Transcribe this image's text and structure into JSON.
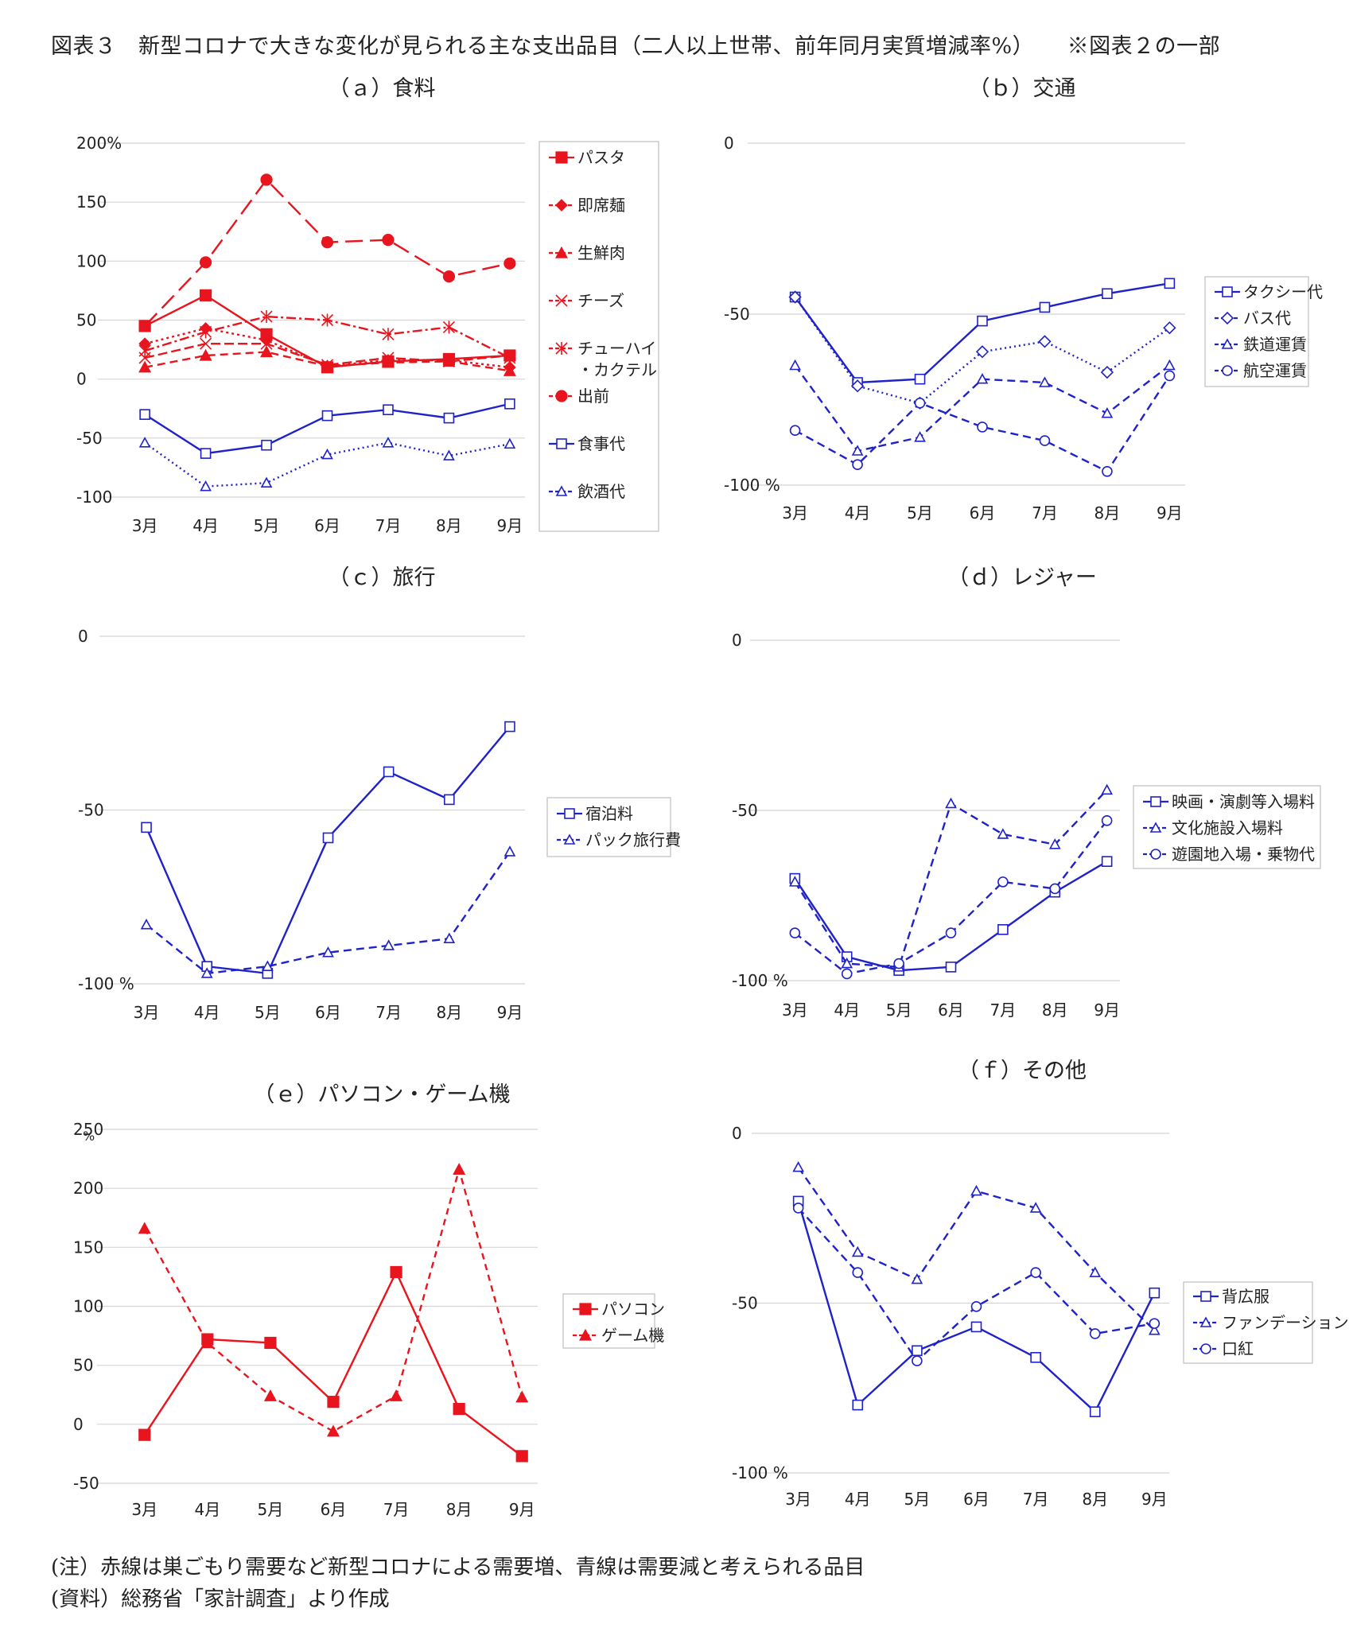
{
  "figure": {
    "title": "図表３　新型コロナで大きな変化が見られる主な支出品目（二人以上世帯、前年同月実質増減率%）　　※図表２の一部",
    "note": "(注）赤線は巣ごもり需要など新型コロナによる需要増、青線は需要減と考えられる品目",
    "source": "(資料）総務省「家計調査」より作成"
  },
  "colors": {
    "red": "#e8141e",
    "blue": "#1f22c8"
  },
  "chart_data": [
    {
      "id": "a",
      "type": "line",
      "title": "（ａ）食料",
      "categories": [
        "3月",
        "4月",
        "5月",
        "6月",
        "7月",
        "8月",
        "9月"
      ],
      "ylim": [
        -100,
        200
      ],
      "yticks": [
        -100,
        -50,
        0,
        50,
        100,
        150,
        200
      ],
      "ytick_labels": [
        "-100",
        "-50",
        "0",
        "50",
        "100",
        "150",
        "200%"
      ],
      "unit_label": "",
      "legend_position": "right",
      "series": [
        {
          "name": "パスタ",
          "color": "#e8141e",
          "dash": "",
          "marker": "square-filled",
          "values": [
            45,
            71,
            38,
            10,
            15,
            17,
            20
          ]
        },
        {
          "name": "即席麺",
          "color": "#e8141e",
          "dash": "3,4",
          "marker": "diamond-filled",
          "values": [
            30,
            43,
            33,
            11,
            16,
            16,
            10
          ]
        },
        {
          "name": "生鮮肉",
          "color": "#e8141e",
          "dash": "10,6",
          "marker": "triangle-filled",
          "values": [
            10,
            20,
            23,
            11,
            14,
            15,
            7
          ]
        },
        {
          "name": "チーズ",
          "color": "#e8141e",
          "dash": "12,5",
          "marker": "x",
          "values": [
            18,
            30,
            30,
            12,
            18,
            15,
            20
          ]
        },
        {
          "name": "チューハイ・カクテル",
          "color": "#e8141e",
          "dash": "12,4,3,4",
          "marker": "star",
          "values": [
            24,
            40,
            53,
            50,
            38,
            44,
            18
          ]
        },
        {
          "name": "出前",
          "color": "#e8141e",
          "dash": "22,9",
          "marker": "circle-filled",
          "values": [
            45,
            99,
            169,
            116,
            118,
            87,
            98
          ]
        },
        {
          "name": "食事代",
          "color": "#1f22c8",
          "dash": "",
          "marker": "square-open",
          "values": [
            -30,
            -63,
            -56,
            -31,
            -26,
            -33,
            -21
          ]
        },
        {
          "name": "飲酒代",
          "color": "#1f22c8",
          "dash": "2,4",
          "marker": "triangle-open",
          "values": [
            -54,
            -91,
            -88,
            -64,
            -54,
            -65,
            -55
          ]
        }
      ]
    },
    {
      "id": "b",
      "type": "line",
      "title": "（ｂ）交通",
      "categories": [
        "3月",
        "4月",
        "5月",
        "6月",
        "7月",
        "8月",
        "9月"
      ],
      "ylim": [
        -100,
        0
      ],
      "yticks": [
        -100,
        -50,
        0
      ],
      "ytick_labels": [
        "-100 %",
        "-50",
        "0"
      ],
      "unit_label": "",
      "legend_position": "right",
      "series": [
        {
          "name": "タクシー代",
          "color": "#1f22c8",
          "dash": "",
          "marker": "square-open",
          "values": [
            -45,
            -70,
            -69,
            -52,
            -48,
            -44,
            -41
          ]
        },
        {
          "name": "バス代",
          "color": "#1f22c8",
          "dash": "2,4",
          "marker": "diamond-open",
          "values": [
            -45,
            -71,
            -76,
            -61,
            -58,
            -67,
            -54
          ]
        },
        {
          "name": "鉄道運賃",
          "color": "#1f22c8",
          "dash": "10,6",
          "marker": "triangle-open",
          "values": [
            -65,
            -90,
            -86,
            -69,
            -70,
            -79,
            -65
          ]
        },
        {
          "name": "航空運賃",
          "color": "#1f22c8",
          "dash": "10,6",
          "marker": "circle-open",
          "values": [
            -84,
            -94,
            -76,
            -83,
            -87,
            -96,
            -68
          ]
        }
      ]
    },
    {
      "id": "c",
      "type": "line",
      "title": "（ｃ）旅行",
      "categories": [
        "3月",
        "4月",
        "5月",
        "6月",
        "7月",
        "8月",
        "9月"
      ],
      "ylim": [
        -100,
        0
      ],
      "yticks": [
        -100,
        -50,
        0
      ],
      "ytick_labels": [
        "-100 %",
        "-50",
        "0"
      ],
      "unit_label": "",
      "legend_position": "right",
      "series": [
        {
          "name": "宿泊料",
          "color": "#1f22c8",
          "dash": "",
          "marker": "square-open",
          "values": [
            -55,
            -95,
            -97,
            -58,
            -39,
            -47,
            -26
          ]
        },
        {
          "name": "パック旅行費",
          "color": "#1f22c8",
          "dash": "10,6",
          "marker": "triangle-open",
          "values": [
            -83,
            -97,
            -95,
            -91,
            -89,
            -87,
            -62
          ]
        }
      ]
    },
    {
      "id": "d",
      "type": "line",
      "title": "（ｄ）レジャー",
      "categories": [
        "3月",
        "4月",
        "5月",
        "6月",
        "7月",
        "8月",
        "9月"
      ],
      "ylim": [
        -100,
        0
      ],
      "yticks": [
        -100,
        -50,
        0
      ],
      "ytick_labels": [
        "-100 %",
        "-50",
        "0"
      ],
      "unit_label": "",
      "legend_position": "right",
      "series": [
        {
          "name": "映画・演劇等入場料",
          "color": "#1f22c8",
          "dash": "",
          "marker": "square-open",
          "values": [
            -70,
            -93,
            -97,
            -96,
            -85,
            -74,
            -65
          ]
        },
        {
          "name": "文化施設入場料",
          "color": "#1f22c8",
          "dash": "10,6",
          "marker": "triangle-open",
          "values": [
            -71,
            -95,
            -96,
            -48,
            -57,
            -60,
            -44
          ]
        },
        {
          "name": "遊園地入場・乗物代",
          "color": "#1f22c8",
          "dash": "10,6",
          "marker": "circle-open",
          "values": [
            -86,
            -98,
            -95,
            -86,
            -71,
            -73,
            -53
          ]
        }
      ]
    },
    {
      "id": "e",
      "type": "line",
      "title": "（ｅ）パソコン・ゲーム機",
      "categories": [
        "3月",
        "4月",
        "5月",
        "6月",
        "7月",
        "8月",
        "9月"
      ],
      "ylim": [
        -50,
        250
      ],
      "yticks": [
        -50,
        0,
        50,
        100,
        150,
        200,
        250
      ],
      "ytick_labels": [
        "-50",
        "0",
        "50",
        "100",
        "150",
        "200",
        "250"
      ],
      "unit_label": "%",
      "legend_position": "right",
      "series": [
        {
          "name": "パソコン",
          "color": "#e8141e",
          "dash": "",
          "marker": "square-filled",
          "values": [
            -9,
            72,
            69,
            19,
            129,
            13,
            -27
          ]
        },
        {
          "name": "ゲーム機",
          "color": "#e8141e",
          "dash": "8,6",
          "marker": "triangle-filled",
          "values": [
            166,
            69,
            24,
            -6,
            24,
            216,
            23
          ]
        }
      ]
    },
    {
      "id": "f",
      "type": "line",
      "title": "（ｆ）その他",
      "categories": [
        "3月",
        "4月",
        "5月",
        "6月",
        "7月",
        "8月",
        "9月"
      ],
      "ylim": [
        -100,
        0
      ],
      "yticks": [
        -100,
        -50,
        0
      ],
      "ytick_labels": [
        "-100 %",
        "-50",
        "0"
      ],
      "unit_label": "",
      "legend_position": "right",
      "series": [
        {
          "name": "背広服",
          "color": "#1f22c8",
          "dash": "",
          "marker": "square-open",
          "values": [
            -20,
            -80,
            -64,
            -57,
            -66,
            -82,
            -47
          ]
        },
        {
          "name": "ファンデーション",
          "color": "#1f22c8",
          "dash": "10,6",
          "marker": "triangle-open",
          "values": [
            -10,
            -35,
            -43,
            -17,
            -22,
            -41,
            -58
          ]
        },
        {
          "name": "口紅",
          "color": "#1f22c8",
          "dash": "10,6",
          "marker": "circle-open",
          "values": [
            -22,
            -41,
            -67,
            -51,
            -41,
            -59,
            -56
          ]
        }
      ]
    }
  ]
}
